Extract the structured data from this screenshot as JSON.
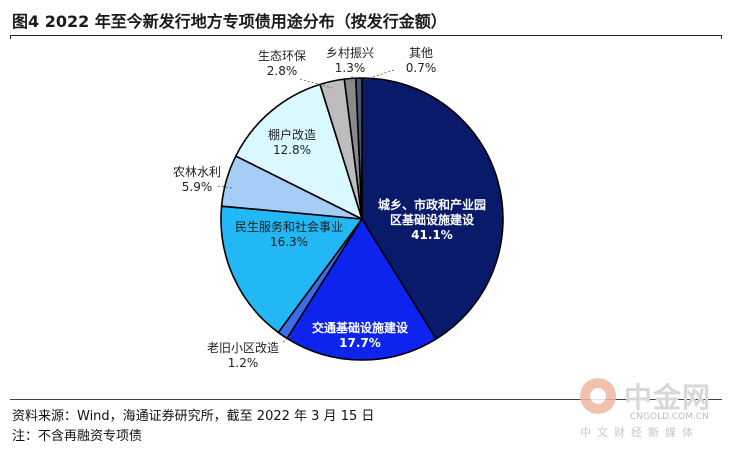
{
  "figure": {
    "title": "图4  2022 年至今新发行地方专项债用途分布（按发行金额）",
    "source": "资料来源：Wind，海通证券研究所，截至 2022 年 3 月 15 日",
    "note": "注：不含再融资专项债"
  },
  "watermark": {
    "name": "中金网",
    "url": "CNGOLD.COM.CN",
    "subtitle": "中文财经新媒体"
  },
  "chart_data": {
    "type": "pie",
    "title": "",
    "start": "12 o'clock",
    "direction": "clockwise",
    "slices": [
      {
        "name": "城乡、市政和产业园区基础设施建设",
        "value": 41.1,
        "label": "41.1%",
        "color": "#0a1a6b"
      },
      {
        "name": "交通基础设施建设",
        "value": 17.7,
        "label": "17.7%",
        "color": "#0c24ee"
      },
      {
        "name": "老旧小区改造",
        "value": 1.2,
        "label": "1.2%",
        "color": "#3b6ce8"
      },
      {
        "name": "民生服务和社会事业",
        "value": 16.3,
        "label": "16.3%",
        "color": "#21b8f5"
      },
      {
        "name": "农林水利",
        "value": 5.9,
        "label": "5.9%",
        "color": "#a5cdf6"
      },
      {
        "name": "棚户改造",
        "value": 12.8,
        "label": "12.8%",
        "color": "#d9f8ff"
      },
      {
        "name": "生态环保",
        "value": 2.8,
        "label": "2.8%",
        "color": "#bdbdbd"
      },
      {
        "name": "乡村振兴",
        "value": 1.3,
        "label": "1.3%",
        "color": "#8a8a8a"
      },
      {
        "name": "其他",
        "value": 0.7,
        "label": "0.7%",
        "color": "#4a5a78"
      }
    ]
  }
}
